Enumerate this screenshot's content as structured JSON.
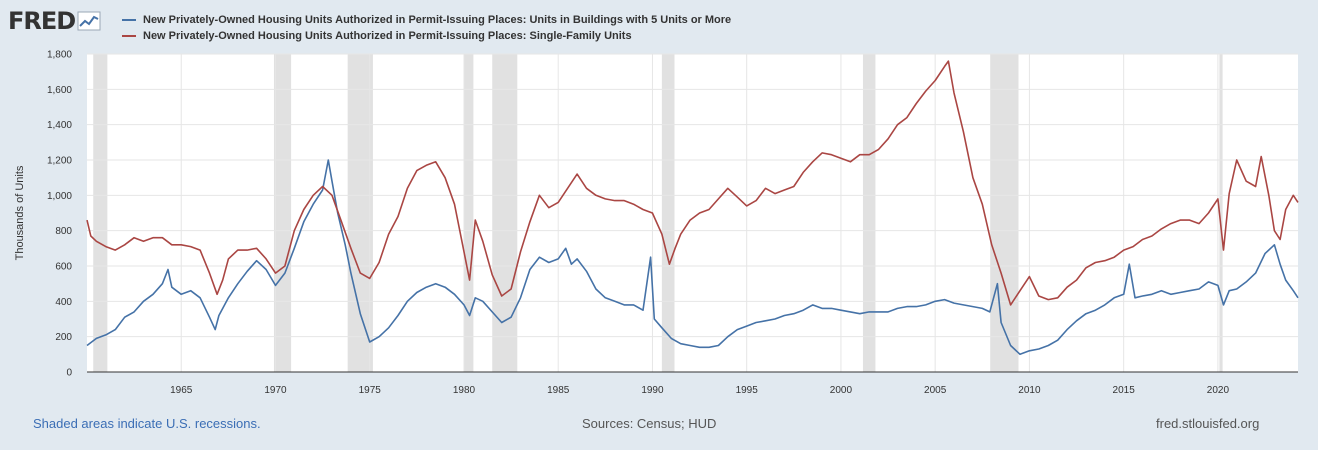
{
  "branding": {
    "logo_text": "FRED",
    "logo_icon": "line-chart-icon"
  },
  "legend": [
    {
      "label": "New Privately-Owned Housing Units Authorized in Permit-Issuing Places: Units in Buildings with 5 Units or More",
      "color": "#4572a7"
    },
    {
      "label": "New Privately-Owned Housing Units Authorized in Permit-Issuing Places: Single-Family Units",
      "color": "#aa4643"
    }
  ],
  "footer": {
    "recession_note": "Shaded areas indicate U.S. recessions.",
    "sources": "Sources: Census; HUD",
    "site": "fred.stlouisfed.org"
  },
  "chart_data": {
    "type": "line",
    "ylabel": "Thousands of Units",
    "xlim": [
      1960.0,
      2024.25
    ],
    "ylim": [
      0,
      1800
    ],
    "yticks": [
      "0",
      "200",
      "400",
      "600",
      "800",
      "1,000",
      "1,200",
      "1,400",
      "1,600",
      "1,800"
    ],
    "xticks": [
      "1965",
      "1970",
      "1975",
      "1980",
      "1985",
      "1990",
      "1995",
      "2000",
      "2005",
      "2010",
      "2015",
      "2020"
    ],
    "grid": true,
    "recessions": [
      [
        1960.33,
        1961.08
      ],
      [
        1969.92,
        1970.83
      ],
      [
        1973.83,
        1975.17
      ],
      [
        1980.0,
        1980.5
      ],
      [
        1981.5,
        1982.83
      ],
      [
        1990.5,
        1991.17
      ],
      [
        2001.17,
        2001.83
      ],
      [
        2007.92,
        2009.42
      ],
      [
        2020.08,
        2020.25
      ]
    ],
    "series": [
      {
        "name": "New Privately-Owned Housing Units Authorized in Permit-Issuing Places: Units in Buildings with 5 Units or More",
        "color": "#4572a7",
        "points": [
          [
            1960.0,
            150
          ],
          [
            1960.5,
            190
          ],
          [
            1961.0,
            210
          ],
          [
            1961.5,
            240
          ],
          [
            1962.0,
            310
          ],
          [
            1962.5,
            340
          ],
          [
            1963.0,
            400
          ],
          [
            1963.5,
            440
          ],
          [
            1964.0,
            500
          ],
          [
            1964.3,
            580
          ],
          [
            1964.5,
            480
          ],
          [
            1965.0,
            440
          ],
          [
            1965.5,
            460
          ],
          [
            1966.0,
            420
          ],
          [
            1966.5,
            310
          ],
          [
            1966.8,
            240
          ],
          [
            1967.0,
            320
          ],
          [
            1967.5,
            420
          ],
          [
            1968.0,
            500
          ],
          [
            1968.5,
            570
          ],
          [
            1969.0,
            630
          ],
          [
            1969.5,
            580
          ],
          [
            1970.0,
            490
          ],
          [
            1970.5,
            560
          ],
          [
            1971.0,
            700
          ],
          [
            1971.5,
            850
          ],
          [
            1972.0,
            950
          ],
          [
            1972.5,
            1030
          ],
          [
            1972.8,
            1200
          ],
          [
            1973.0,
            1080
          ],
          [
            1973.3,
            900
          ],
          [
            1973.7,
            720
          ],
          [
            1974.0,
            560
          ],
          [
            1974.5,
            330
          ],
          [
            1975.0,
            170
          ],
          [
            1975.5,
            200
          ],
          [
            1976.0,
            250
          ],
          [
            1976.5,
            320
          ],
          [
            1977.0,
            400
          ],
          [
            1977.5,
            450
          ],
          [
            1978.0,
            480
          ],
          [
            1978.5,
            500
          ],
          [
            1979.0,
            480
          ],
          [
            1979.5,
            440
          ],
          [
            1980.0,
            380
          ],
          [
            1980.3,
            320
          ],
          [
            1980.6,
            420
          ],
          [
            1981.0,
            400
          ],
          [
            1981.5,
            340
          ],
          [
            1982.0,
            280
          ],
          [
            1982.5,
            310
          ],
          [
            1983.0,
            420
          ],
          [
            1983.5,
            580
          ],
          [
            1984.0,
            650
          ],
          [
            1984.5,
            620
          ],
          [
            1985.0,
            640
          ],
          [
            1985.4,
            700
          ],
          [
            1985.7,
            610
          ],
          [
            1986.0,
            640
          ],
          [
            1986.5,
            570
          ],
          [
            1987.0,
            470
          ],
          [
            1987.5,
            420
          ],
          [
            1988.0,
            400
          ],
          [
            1988.5,
            380
          ],
          [
            1989.0,
            380
          ],
          [
            1989.5,
            350
          ],
          [
            1989.9,
            650
          ],
          [
            1990.1,
            300
          ],
          [
            1990.5,
            250
          ],
          [
            1991.0,
            190
          ],
          [
            1991.5,
            160
          ],
          [
            1992.0,
            150
          ],
          [
            1992.5,
            140
          ],
          [
            1993.0,
            140
          ],
          [
            1993.5,
            150
          ],
          [
            1994.0,
            200
          ],
          [
            1994.5,
            240
          ],
          [
            1995.0,
            260
          ],
          [
            1995.5,
            280
          ],
          [
            1996.0,
            290
          ],
          [
            1996.5,
            300
          ],
          [
            1997.0,
            320
          ],
          [
            1997.5,
            330
          ],
          [
            1998.0,
            350
          ],
          [
            1998.5,
            380
          ],
          [
            1999.0,
            360
          ],
          [
            1999.5,
            360
          ],
          [
            2000.0,
            350
          ],
          [
            2000.5,
            340
          ],
          [
            2001.0,
            330
          ],
          [
            2001.5,
            340
          ],
          [
            2002.0,
            340
          ],
          [
            2002.5,
            340
          ],
          [
            2003.0,
            360
          ],
          [
            2003.5,
            370
          ],
          [
            2004.0,
            370
          ],
          [
            2004.5,
            380
          ],
          [
            2005.0,
            400
          ],
          [
            2005.5,
            410
          ],
          [
            2006.0,
            390
          ],
          [
            2006.5,
            380
          ],
          [
            2007.0,
            370
          ],
          [
            2007.5,
            360
          ],
          [
            2007.9,
            340
          ],
          [
            2008.3,
            500
          ],
          [
            2008.5,
            280
          ],
          [
            2009.0,
            150
          ],
          [
            2009.5,
            100
          ],
          [
            2010.0,
            120
          ],
          [
            2010.5,
            130
          ],
          [
            2011.0,
            150
          ],
          [
            2011.5,
            180
          ],
          [
            2012.0,
            240
          ],
          [
            2012.5,
            290
          ],
          [
            2013.0,
            330
          ],
          [
            2013.5,
            350
          ],
          [
            2014.0,
            380
          ],
          [
            2014.5,
            420
          ],
          [
            2015.0,
            440
          ],
          [
            2015.3,
            610
          ],
          [
            2015.6,
            420
          ],
          [
            2016.0,
            430
          ],
          [
            2016.5,
            440
          ],
          [
            2017.0,
            460
          ],
          [
            2017.5,
            440
          ],
          [
            2018.0,
            450
          ],
          [
            2018.5,
            460
          ],
          [
            2019.0,
            470
          ],
          [
            2019.5,
            510
          ],
          [
            2020.0,
            490
          ],
          [
            2020.3,
            380
          ],
          [
            2020.6,
            460
          ],
          [
            2021.0,
            470
          ],
          [
            2021.5,
            510
          ],
          [
            2022.0,
            560
          ],
          [
            2022.5,
            670
          ],
          [
            2023.0,
            720
          ],
          [
            2023.3,
            610
          ],
          [
            2023.6,
            520
          ],
          [
            2024.0,
            460
          ],
          [
            2024.25,
            420
          ]
        ]
      },
      {
        "name": "New Privately-Owned Housing Units Authorized in Permit-Issuing Places: Single-Family Units",
        "color": "#aa4643",
        "points": [
          [
            1960.0,
            860
          ],
          [
            1960.2,
            770
          ],
          [
            1960.5,
            740
          ],
          [
            1961.0,
            710
          ],
          [
            1961.5,
            690
          ],
          [
            1962.0,
            720
          ],
          [
            1962.5,
            760
          ],
          [
            1963.0,
            740
          ],
          [
            1963.5,
            760
          ],
          [
            1964.0,
            760
          ],
          [
            1964.5,
            720
          ],
          [
            1965.0,
            720
          ],
          [
            1965.5,
            710
          ],
          [
            1966.0,
            690
          ],
          [
            1966.5,
            560
          ],
          [
            1966.9,
            440
          ],
          [
            1967.2,
            520
          ],
          [
            1967.5,
            640
          ],
          [
            1968.0,
            690
          ],
          [
            1968.5,
            690
          ],
          [
            1969.0,
            700
          ],
          [
            1969.5,
            640
          ],
          [
            1970.0,
            560
          ],
          [
            1970.5,
            600
          ],
          [
            1971.0,
            800
          ],
          [
            1971.5,
            920
          ],
          [
            1972.0,
            1000
          ],
          [
            1972.5,
            1050
          ],
          [
            1973.0,
            1000
          ],
          [
            1973.5,
            850
          ],
          [
            1974.0,
            700
          ],
          [
            1974.5,
            560
          ],
          [
            1975.0,
            530
          ],
          [
            1975.5,
            620
          ],
          [
            1976.0,
            780
          ],
          [
            1976.5,
            880
          ],
          [
            1977.0,
            1040
          ],
          [
            1977.5,
            1140
          ],
          [
            1978.0,
            1170
          ],
          [
            1978.5,
            1190
          ],
          [
            1979.0,
            1100
          ],
          [
            1979.5,
            950
          ],
          [
            1980.0,
            680
          ],
          [
            1980.3,
            520
          ],
          [
            1980.6,
            860
          ],
          [
            1981.0,
            740
          ],
          [
            1981.5,
            550
          ],
          [
            1982.0,
            430
          ],
          [
            1982.5,
            470
          ],
          [
            1983.0,
            680
          ],
          [
            1983.5,
            850
          ],
          [
            1984.0,
            1000
          ],
          [
            1984.5,
            930
          ],
          [
            1985.0,
            960
          ],
          [
            1985.5,
            1040
          ],
          [
            1986.0,
            1120
          ],
          [
            1986.5,
            1040
          ],
          [
            1987.0,
            1000
          ],
          [
            1987.5,
            980
          ],
          [
            1988.0,
            970
          ],
          [
            1988.5,
            970
          ],
          [
            1989.0,
            950
          ],
          [
            1989.5,
            920
          ],
          [
            1990.0,
            900
          ],
          [
            1990.5,
            780
          ],
          [
            1990.9,
            610
          ],
          [
            1991.2,
            700
          ],
          [
            1991.5,
            780
          ],
          [
            1992.0,
            860
          ],
          [
            1992.5,
            900
          ],
          [
            1993.0,
            920
          ],
          [
            1993.5,
            980
          ],
          [
            1994.0,
            1040
          ],
          [
            1994.5,
            990
          ],
          [
            1995.0,
            940
          ],
          [
            1995.5,
            970
          ],
          [
            1996.0,
            1040
          ],
          [
            1996.5,
            1010
          ],
          [
            1997.0,
            1030
          ],
          [
            1997.5,
            1050
          ],
          [
            1998.0,
            1130
          ],
          [
            1998.5,
            1190
          ],
          [
            1999.0,
            1240
          ],
          [
            1999.5,
            1230
          ],
          [
            2000.0,
            1210
          ],
          [
            2000.5,
            1190
          ],
          [
            2001.0,
            1230
          ],
          [
            2001.5,
            1230
          ],
          [
            2002.0,
            1260
          ],
          [
            2002.5,
            1320
          ],
          [
            2003.0,
            1400
          ],
          [
            2003.5,
            1440
          ],
          [
            2004.0,
            1520
          ],
          [
            2004.5,
            1590
          ],
          [
            2005.0,
            1650
          ],
          [
            2005.5,
            1730
          ],
          [
            2005.7,
            1760
          ],
          [
            2006.0,
            1580
          ],
          [
            2006.5,
            1360
          ],
          [
            2007.0,
            1100
          ],
          [
            2007.5,
            950
          ],
          [
            2008.0,
            720
          ],
          [
            2008.5,
            560
          ],
          [
            2009.0,
            380
          ],
          [
            2009.5,
            460
          ],
          [
            2010.0,
            540
          ],
          [
            2010.5,
            430
          ],
          [
            2011.0,
            410
          ],
          [
            2011.5,
            420
          ],
          [
            2012.0,
            480
          ],
          [
            2012.5,
            520
          ],
          [
            2013.0,
            590
          ],
          [
            2013.5,
            620
          ],
          [
            2014.0,
            630
          ],
          [
            2014.5,
            650
          ],
          [
            2015.0,
            690
          ],
          [
            2015.5,
            710
          ],
          [
            2016.0,
            750
          ],
          [
            2016.5,
            770
          ],
          [
            2017.0,
            810
          ],
          [
            2017.5,
            840
          ],
          [
            2018.0,
            860
          ],
          [
            2018.5,
            860
          ],
          [
            2019.0,
            840
          ],
          [
            2019.5,
            900
          ],
          [
            2020.0,
            980
          ],
          [
            2020.3,
            690
          ],
          [
            2020.6,
            1010
          ],
          [
            2021.0,
            1200
          ],
          [
            2021.5,
            1080
          ],
          [
            2022.0,
            1050
          ],
          [
            2022.3,
            1220
          ],
          [
            2022.7,
            1000
          ],
          [
            2023.0,
            800
          ],
          [
            2023.3,
            750
          ],
          [
            2023.6,
            920
          ],
          [
            2024.0,
            1000
          ],
          [
            2024.25,
            960
          ]
        ]
      }
    ]
  }
}
